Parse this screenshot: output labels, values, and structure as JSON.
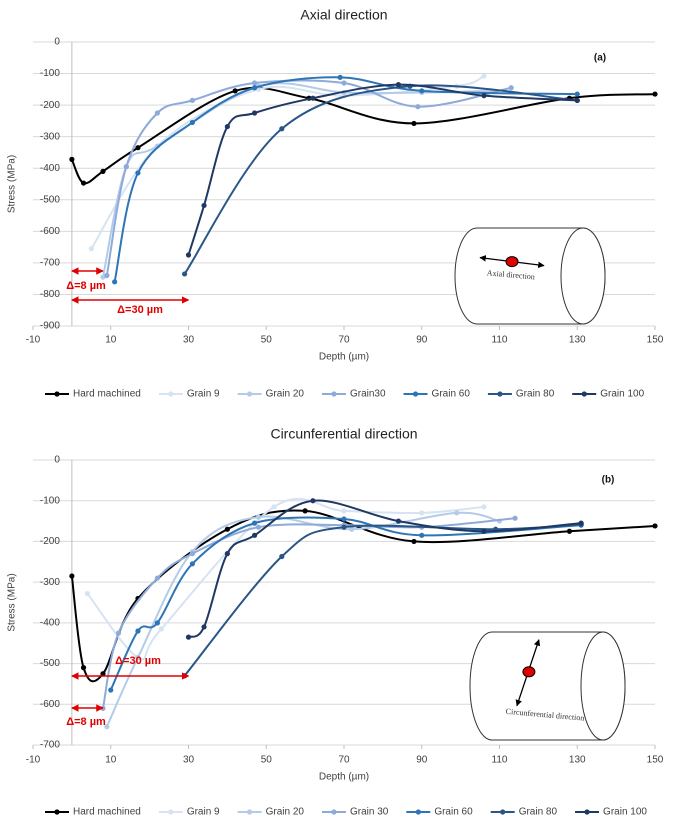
{
  "chart_data": [
    {
      "type": "line",
      "title": "Axial direction",
      "xlabel": "Depth (µm)",
      "ylabel": "Stress (MPa)",
      "xlim": [
        -10,
        150
      ],
      "xticks": [
        -10,
        10,
        30,
        50,
        70,
        90,
        110,
        130,
        150
      ],
      "ylim": [
        -900,
        0
      ],
      "yticks": [
        0,
        -100,
        -200,
        -300,
        -400,
        -500,
        -600,
        -700,
        -800,
        -900
      ],
      "grid": true,
      "tag": "(a)",
      "inset_label": "Axial direction",
      "arrows": [
        {
          "label": "Δ=8 µm",
          "from": 0,
          "to": 8
        },
        {
          "label": "Δ=30 µm",
          "from": 0,
          "to": 30
        }
      ],
      "series": [
        {
          "name": "Hard machined",
          "color": "#000000",
          "x": [
            0,
            3,
            8,
            17,
            42,
            61,
            88,
            128,
            150
          ],
          "values": [
            -372,
            -447,
            -410,
            -335,
            -155,
            -178,
            -258,
            -178,
            -165
          ]
        },
        {
          "name": "Grain 9",
          "color": "#d6e3f3",
          "x": [
            5,
            22,
            48,
            70,
            99,
            106
          ],
          "values": [
            -655,
            -330,
            -150,
            -170,
            -140,
            -108
          ]
        },
        {
          "name": "Grain 20",
          "color": "#b4cbe8",
          "x": [
            8,
            14,
            22,
            48,
            70,
            90,
            108
          ],
          "values": [
            -745,
            -395,
            -330,
            -140,
            -160,
            -160,
            -155
          ]
        },
        {
          "name": "Grain30",
          "color": "#8eaadb",
          "x": [
            9,
            14,
            22,
            31,
            47,
            70,
            89,
            113
          ],
          "values": [
            -740,
            -395,
            -225,
            -185,
            -130,
            -130,
            -205,
            -145
          ]
        },
        {
          "name": "Grain 60",
          "color": "#2e75b6",
          "x": [
            11,
            17,
            31,
            47,
            69,
            90,
            130
          ],
          "values": [
            -760,
            -415,
            -255,
            -145,
            -112,
            -155,
            -165
          ]
        },
        {
          "name": "Grain 80",
          "color": "#2a5687",
          "x": [
            29,
            54,
            87,
            130
          ],
          "values": [
            -735,
            -275,
            -140,
            -185
          ]
        },
        {
          "name": "Grain 100",
          "color": "#1f3864",
          "x": [
            30,
            34,
            40,
            47,
            62,
            84,
            106,
            130
          ],
          "values": [
            -675,
            -518,
            -268,
            -225,
            -178,
            -135,
            -170,
            -185
          ]
        }
      ]
    },
    {
      "type": "line",
      "title": "Circunferential direction",
      "xlabel": "Depth (µm)",
      "ylabel": "Stress (MPa)",
      "xlim": [
        -10,
        150
      ],
      "xticks": [
        -10,
        10,
        30,
        50,
        70,
        90,
        110,
        130,
        150
      ],
      "ylim": [
        -700,
        0
      ],
      "yticks": [
        0,
        -100,
        -200,
        -300,
        -400,
        -500,
        -600,
        -700
      ],
      "grid": true,
      "tag": "(b)",
      "inset_label": "Circunferential direction",
      "arrows": [
        {
          "label": "Δ=30 µm",
          "from": 0,
          "to": 30
        },
        {
          "label": "Δ=8 µm",
          "from": 0,
          "to": 8
        }
      ],
      "series": [
        {
          "name": "Hard machined",
          "color": "#000000",
          "x": [
            0,
            3,
            8,
            17,
            40,
            60,
            88,
            128,
            150
          ],
          "values": [
            -285,
            -510,
            -525,
            -340,
            -170,
            -125,
            -200,
            -175,
            -162
          ]
        },
        {
          "name": "Grain 9",
          "color": "#d6e3f3",
          "x": [
            4,
            17,
            23,
            52,
            70,
            90,
            106
          ],
          "values": [
            -328,
            -485,
            -415,
            -115,
            -125,
            -130,
            -115
          ]
        },
        {
          "name": "Grain 20",
          "color": "#b4cbe8",
          "x": [
            9,
            17,
            31,
            48,
            72,
            99,
            110
          ],
          "values": [
            -655,
            -485,
            -225,
            -140,
            -170,
            -130,
            -150
          ]
        },
        {
          "name": "Grain 30",
          "color": "#8eaadb",
          "x": [
            8,
            12,
            22,
            31,
            48,
            70,
            90,
            114
          ],
          "values": [
            -610,
            -425,
            -290,
            -230,
            -165,
            -160,
            -165,
            -143
          ]
        },
        {
          "name": "Grain 60",
          "color": "#2e75b6",
          "x": [
            10,
            17,
            22,
            31,
            47,
            70,
            90,
            131
          ],
          "values": [
            -565,
            -420,
            -400,
            -255,
            -155,
            -145,
            -185,
            -160
          ]
        },
        {
          "name": "Grain 80",
          "color": "#2a5687",
          "x": [
            29,
            54,
            70,
            109,
            131
          ],
          "values": [
            -530,
            -237,
            -165,
            -170,
            -158
          ]
        },
        {
          "name": "Grain 100",
          "color": "#1f3864",
          "x": [
            30,
            34,
            40,
            47,
            62,
            84,
            106,
            131
          ],
          "values": [
            -435,
            -410,
            -230,
            -185,
            -100,
            -150,
            -175,
            -155
          ]
        }
      ]
    }
  ]
}
